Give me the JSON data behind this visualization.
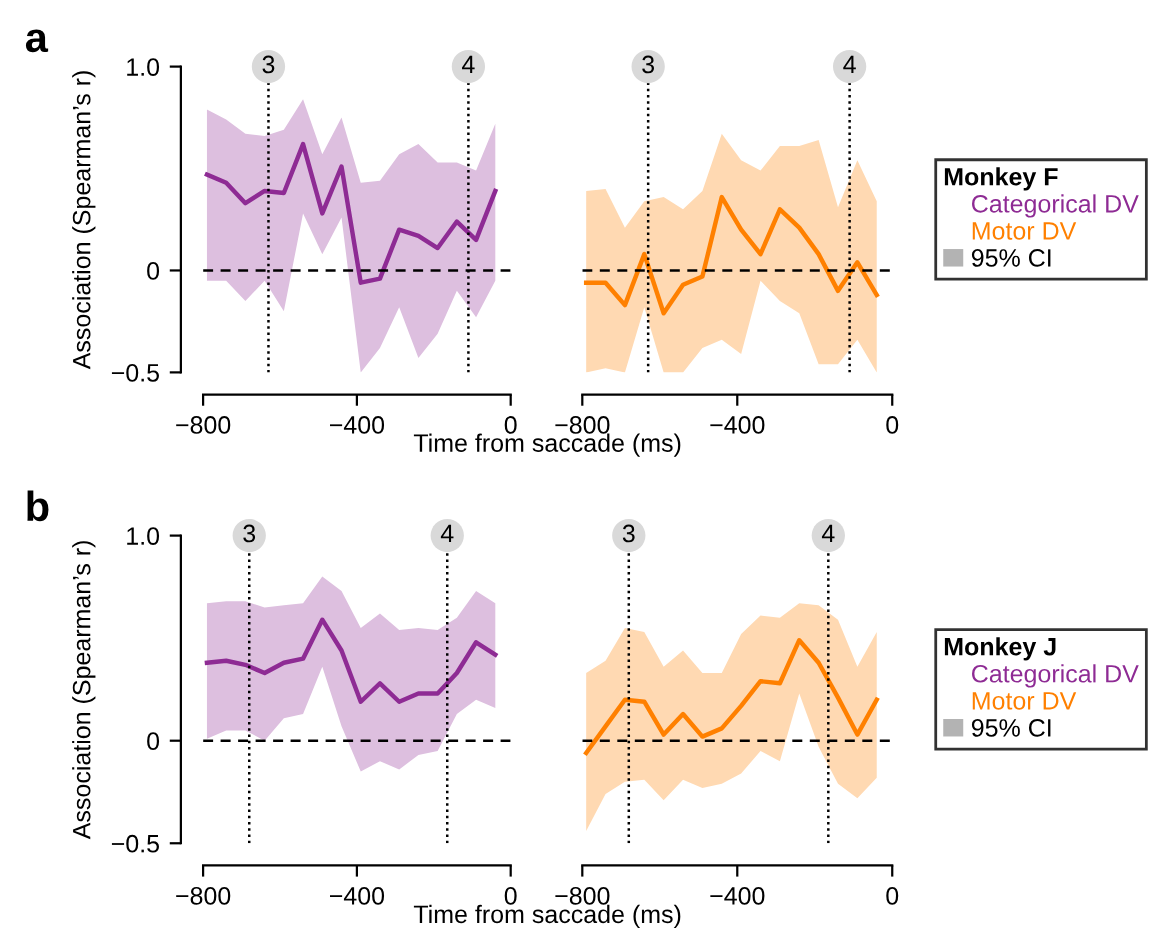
{
  "chart_data": [
    {
      "type": "line",
      "title": "a",
      "ylabel": "Association (Spearman’s r)",
      "xlabel": "Time from saccade (ms)",
      "x": [
        -790,
        -740,
        -690,
        -640,
        -590,
        -540,
        -490,
        -440,
        -390,
        -340,
        -290,
        -240,
        -190,
        -140,
        -90,
        -40
      ],
      "series": [
        {
          "name": "Categorical DV",
          "color": "#8e2b94",
          "values": [
            0.47,
            0.43,
            0.33,
            0.39,
            0.38,
            0.62,
            0.28,
            0.51,
            -0.06,
            -0.04,
            0.2,
            0.17,
            0.11,
            0.24,
            0.15,
            0.39
          ],
          "upper": [
            0.79,
            0.74,
            0.67,
            0.66,
            0.69,
            0.84,
            0.57,
            0.75,
            0.43,
            0.44,
            0.57,
            0.62,
            0.53,
            0.53,
            0.49,
            0.72
          ],
          "lower": [
            -0.05,
            -0.05,
            -0.15,
            -0.05,
            -0.2,
            0.28,
            0.08,
            0.26,
            -0.5,
            -0.38,
            -0.18,
            -0.43,
            -0.31,
            -0.1,
            -0.23,
            -0.05
          ]
        }
      ],
      "xlim": [
        -800,
        0
      ],
      "ylim": [
        -0.5,
        1.0
      ],
      "xticks": [
        -800,
        -400,
        0
      ],
      "yticks": [
        -0.5,
        0,
        {
          "value": 1,
          "label": "1.0"
        }
      ],
      "ref_lines": [
        {
          "axis": "y",
          "value": 0,
          "line_style": "dashed"
        },
        {
          "axis": "x",
          "value": -630,
          "line_style": "dotted"
        },
        {
          "axis": "x",
          "value": -110,
          "line_style": "dotted"
        }
      ],
      "annotations": [
        {
          "text": "3",
          "x": -630,
          "y": 1.0
        },
        {
          "text": "4",
          "x": -110,
          "y": 1.0
        }
      ],
      "legend": false,
      "grid": false
    },
    {
      "type": "line",
      "x": [
        -790,
        -740,
        -690,
        -640,
        -590,
        -540,
        -490,
        -440,
        -390,
        -340,
        -290,
        -240,
        -190,
        -140,
        -90,
        -40
      ],
      "series": [
        {
          "name": "Motor DV",
          "color": "#ff8000",
          "values": [
            -0.06,
            -0.06,
            -0.17,
            0.08,
            -0.21,
            -0.07,
            -0.03,
            0.36,
            0.2,
            0.08,
            0.3,
            0.21,
            0.08,
            -0.1,
            0.04,
            -0.12
          ],
          "upper": [
            0.39,
            0.4,
            0.21,
            0.34,
            0.36,
            0.3,
            0.39,
            0.67,
            0.54,
            0.49,
            0.61,
            0.61,
            0.64,
            0.31,
            0.54,
            0.34
          ],
          "lower": [
            -0.5,
            -0.48,
            -0.5,
            -0.18,
            -0.5,
            -0.5,
            -0.38,
            -0.34,
            -0.41,
            -0.05,
            -0.15,
            -0.21,
            -0.46,
            -0.46,
            -0.34,
            -0.5
          ]
        }
      ],
      "xlim": [
        -800,
        0
      ],
      "ylim": [
        -0.5,
        1.0
      ],
      "xticks": [
        -800,
        -400,
        0
      ],
      "tick_labels": "x",
      "ref_lines": [
        {
          "axis": "y",
          "value": 0,
          "line_style": "dashed"
        },
        {
          "axis": "x",
          "value": -630,
          "line_style": "dotted"
        },
        {
          "axis": "x",
          "value": -110,
          "line_style": "dotted"
        }
      ],
      "legend": "right",
      "legend_title": "Monkey F",
      "annotations": [
        {
          "text": "3",
          "x": -630,
          "y": 1.0
        },
        {
          "text": "4",
          "x": -110,
          "y": 1.0
        },
        "95% CI"
      ],
      "grid": false
    },
    {
      "type": "line",
      "title": "b",
      "ylabel": "Association (Spearman’s r)",
      "xlabel": "Time from saccade (ms)",
      "x": [
        -790,
        -740,
        -690,
        -640,
        -590,
        -540,
        -490,
        -440,
        -390,
        -340,
        -290,
        -240,
        -190,
        -140,
        -90,
        -40
      ],
      "series": [
        {
          "name": "Categorical DV",
          "color": "#8e2b94",
          "values": [
            0.38,
            0.39,
            0.37,
            0.33,
            0.38,
            0.4,
            0.59,
            0.44,
            0.19,
            0.28,
            0.19,
            0.23,
            0.23,
            0.33,
            0.48,
            0.42
          ],
          "upper": [
            0.67,
            0.68,
            0.68,
            0.65,
            0.66,
            0.67,
            0.8,
            0.73,
            0.55,
            0.62,
            0.54,
            0.55,
            0.54,
            0.6,
            0.73,
            0.67
          ],
          "lower": [
            0.01,
            0.05,
            0.05,
            0.0,
            0.11,
            0.13,
            0.36,
            0.07,
            -0.15,
            -0.1,
            -0.14,
            -0.07,
            -0.05,
            0.13,
            0.2,
            0.16
          ]
        }
      ],
      "xlim": [
        -800,
        0
      ],
      "ylim": [
        -0.5,
        1.0
      ],
      "xticks": [
        -800,
        -400,
        0
      ],
      "yticks": [
        -0.5,
        0,
        {
          "value": 1,
          "label": "1.0"
        }
      ],
      "ref_lines": [
        {
          "axis": "y",
          "value": 0,
          "line_style": "dashed"
        },
        {
          "axis": "x",
          "value": -680,
          "line_style": "dotted"
        },
        {
          "axis": "x",
          "value": -165,
          "line_style": "dotted"
        }
      ],
      "annotations": [
        {
          "text": "3",
          "x": -680,
          "y": 1.0
        },
        {
          "text": "4",
          "x": -165,
          "y": 1.0
        }
      ],
      "legend": false,
      "grid": false
    },
    {
      "type": "line",
      "x": [
        -790,
        -740,
        -690,
        -640,
        -590,
        -540,
        -490,
        -440,
        -390,
        -340,
        -290,
        -240,
        -190,
        -140,
        -90,
        -40
      ],
      "series": [
        {
          "name": "Motor DV",
          "color": "#ff8000",
          "values": [
            -0.06,
            0.07,
            0.2,
            0.19,
            0.03,
            0.13,
            0.02,
            0.06,
            0.17,
            0.29,
            0.28,
            0.49,
            0.38,
            0.21,
            0.03,
            0.2
          ],
          "upper": [
            0.33,
            0.39,
            0.55,
            0.53,
            0.36,
            0.44,
            0.33,
            0.33,
            0.52,
            0.61,
            0.6,
            0.67,
            0.66,
            0.59,
            0.36,
            0.53
          ],
          "lower": [
            -0.44,
            -0.26,
            -0.2,
            -0.19,
            -0.29,
            -0.19,
            -0.23,
            -0.21,
            -0.16,
            -0.05,
            -0.1,
            0.23,
            -0.03,
            -0.21,
            -0.28,
            -0.18
          ]
        }
      ],
      "xlim": [
        -800,
        0
      ],
      "ylim": [
        -0.5,
        1.0
      ],
      "xticks": [
        -800,
        -400,
        0
      ],
      "tick_labels": "x",
      "ref_lines": [
        {
          "axis": "y",
          "value": 0,
          "line_style": "dashed"
        },
        {
          "axis": "x",
          "value": -680,
          "line_style": "dotted"
        },
        {
          "axis": "x",
          "value": -165,
          "line_style": "dotted"
        }
      ],
      "legend": "right",
      "legend_title": "Monkey J",
      "annotations": [
        {
          "text": "3",
          "x": -680,
          "y": 1.0
        },
        {
          "text": "4",
          "x": -165,
          "y": 1.0
        },
        "95% CI"
      ],
      "grid": false
    }
  ]
}
